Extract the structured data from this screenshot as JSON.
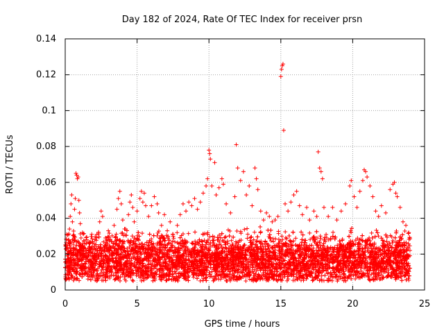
{
  "chart_data": {
    "type": "scatter",
    "title": "Day 182 of 2024, Rate Of TEC Index for receiver prsn",
    "xlabel": "GPS time / hours",
    "ylabel": "ROTI / TECUs",
    "xlim": [
      0,
      25
    ],
    "ylim": [
      0,
      0.14
    ],
    "x_ticks": [
      0,
      5,
      10,
      15,
      20,
      25
    ],
    "x_tick_labels": [
      "0",
      "5",
      "10",
      "15",
      "20",
      "25"
    ],
    "y_ticks": [
      0,
      0.02,
      0.04,
      0.06,
      0.08,
      0.1,
      0.12,
      0.14
    ],
    "y_tick_labels": [
      "0",
      "0.02",
      "0.04",
      "0.06",
      "0.08",
      "0.1",
      "0.12",
      "0.14"
    ],
    "grid": true,
    "marker": "+",
    "color": "#ff0000",
    "series": [
      {
        "name": "ROTI",
        "points": [
          [
            0.05,
            0.025
          ],
          [
            0.1,
            0.031
          ],
          [
            0.15,
            0.019
          ],
          [
            0.2,
            0.012
          ],
          [
            0.25,
            0.028
          ],
          [
            0.3,
            0.034
          ],
          [
            0.35,
            0.041
          ],
          [
            0.4,
            0.048
          ],
          [
            0.45,
            0.053
          ],
          [
            0.5,
            0.038
          ],
          [
            0.55,
            0.022
          ],
          [
            0.6,
            0.016
          ],
          [
            0.65,
            0.045
          ],
          [
            0.7,
            0.051
          ],
          [
            0.75,
            0.065
          ],
          [
            0.8,
            0.064
          ],
          [
            0.85,
            0.062
          ],
          [
            0.9,
            0.063
          ],
          [
            0.95,
            0.05
          ],
          [
            1.0,
            0.043
          ],
          [
            1.05,
            0.037
          ],
          [
            1.1,
            0.029
          ],
          [
            1.2,
            0.032
          ],
          [
            1.3,
            0.024
          ],
          [
            1.5,
            0.028
          ],
          [
            1.7,
            0.021
          ],
          [
            2.0,
            0.026
          ],
          [
            2.2,
            0.031
          ],
          [
            2.4,
            0.038
          ],
          [
            2.5,
            0.044
          ],
          [
            2.6,
            0.041
          ],
          [
            2.8,
            0.029
          ],
          [
            3.0,
            0.033
          ],
          [
            3.2,
            0.027
          ],
          [
            3.4,
            0.036
          ],
          [
            3.6,
            0.045
          ],
          [
            3.7,
            0.051
          ],
          [
            3.8,
            0.055
          ],
          [
            3.9,
            0.048
          ],
          [
            4.0,
            0.039
          ],
          [
            4.2,
            0.034
          ],
          [
            4.4,
            0.042
          ],
          [
            4.5,
            0.049
          ],
          [
            4.6,
            0.053
          ],
          [
            4.7,
            0.046
          ],
          [
            4.8,
            0.038
          ],
          [
            5.0,
            0.044
          ],
          [
            5.2,
            0.051
          ],
          [
            5.3,
            0.055
          ],
          [
            5.4,
            0.049
          ],
          [
            5.5,
            0.054
          ],
          [
            5.6,
            0.047
          ],
          [
            5.8,
            0.041
          ],
          [
            6.0,
            0.047
          ],
          [
            6.2,
            0.052
          ],
          [
            6.4,
            0.048
          ],
          [
            6.5,
            0.043
          ],
          [
            6.7,
            0.036
          ],
          [
            6.9,
            0.042
          ],
          [
            7.1,
            0.033
          ],
          [
            7.3,
            0.038
          ],
          [
            7.5,
            0.031
          ],
          [
            7.8,
            0.036
          ],
          [
            8.0,
            0.042
          ],
          [
            8.2,
            0.048
          ],
          [
            8.4,
            0.044
          ],
          [
            8.6,
            0.049
          ],
          [
            8.8,
            0.047
          ],
          [
            9.0,
            0.051
          ],
          [
            9.2,
            0.045
          ],
          [
            9.4,
            0.049
          ],
          [
            9.6,
            0.054
          ],
          [
            9.8,
            0.058
          ],
          [
            9.9,
            0.062
          ],
          [
            10.0,
            0.078
          ],
          [
            10.05,
            0.076
          ],
          [
            10.1,
            0.073
          ],
          [
            10.2,
            0.058
          ],
          [
            10.4,
            0.071
          ],
          [
            10.5,
            0.053
          ],
          [
            10.7,
            0.057
          ],
          [
            10.9,
            0.062
          ],
          [
            11.0,
            0.059
          ],
          [
            11.2,
            0.048
          ],
          [
            11.5,
            0.043
          ],
          [
            11.8,
            0.052
          ],
          [
            11.9,
            0.081
          ],
          [
            12.0,
            0.068
          ],
          [
            12.2,
            0.061
          ],
          [
            12.4,
            0.066
          ],
          [
            12.6,
            0.053
          ],
          [
            12.8,
            0.058
          ],
          [
            13.0,
            0.047
          ],
          [
            13.2,
            0.068
          ],
          [
            13.3,
            0.062
          ],
          [
            13.4,
            0.056
          ],
          [
            13.6,
            0.044
          ],
          [
            13.8,
            0.039
          ],
          [
            14.0,
            0.043
          ],
          [
            14.2,
            0.041
          ],
          [
            14.4,
            0.038
          ],
          [
            14.6,
            0.039
          ],
          [
            14.8,
            0.041
          ],
          [
            15.0,
            0.119
          ],
          [
            15.05,
            0.123
          ],
          [
            15.1,
            0.125
          ],
          [
            15.15,
            0.126
          ],
          [
            15.2,
            0.089
          ],
          [
            15.3,
            0.048
          ],
          [
            15.5,
            0.044
          ],
          [
            15.7,
            0.049
          ],
          [
            15.9,
            0.053
          ],
          [
            16.1,
            0.055
          ],
          [
            16.3,
            0.047
          ],
          [
            16.5,
            0.042
          ],
          [
            16.8,
            0.046
          ],
          [
            17.0,
            0.039
          ],
          [
            17.3,
            0.044
          ],
          [
            17.5,
            0.041
          ],
          [
            17.6,
            0.077
          ],
          [
            17.7,
            0.068
          ],
          [
            17.8,
            0.066
          ],
          [
            17.9,
            0.062
          ],
          [
            18.0,
            0.046
          ],
          [
            18.3,
            0.041
          ],
          [
            18.6,
            0.046
          ],
          [
            18.9,
            0.039
          ],
          [
            19.2,
            0.044
          ],
          [
            19.5,
            0.048
          ],
          [
            19.8,
            0.058
          ],
          [
            19.9,
            0.061
          ],
          [
            20.1,
            0.052
          ],
          [
            20.3,
            0.046
          ],
          [
            20.5,
            0.055
          ],
          [
            20.7,
            0.061
          ],
          [
            20.8,
            0.067
          ],
          [
            20.9,
            0.066
          ],
          [
            21.0,
            0.063
          ],
          [
            21.2,
            0.058
          ],
          [
            21.4,
            0.052
          ],
          [
            21.6,
            0.044
          ],
          [
            21.8,
            0.041
          ],
          [
            22.0,
            0.047
          ],
          [
            22.3,
            0.043
          ],
          [
            22.6,
            0.056
          ],
          [
            22.8,
            0.059
          ],
          [
            22.9,
            0.06
          ],
          [
            23.0,
            0.054
          ],
          [
            23.1,
            0.052
          ],
          [
            23.3,
            0.046
          ],
          [
            23.5,
            0.038
          ],
          [
            23.7,
            0.036
          ],
          [
            23.9,
            0.032
          ]
        ]
      }
    ],
    "dense_band": {
      "description_value_range": [
        0.005,
        0.035
      ],
      "typical_center": 0.017,
      "x_range": [
        0,
        24
      ],
      "point_count": 6000
    }
  }
}
